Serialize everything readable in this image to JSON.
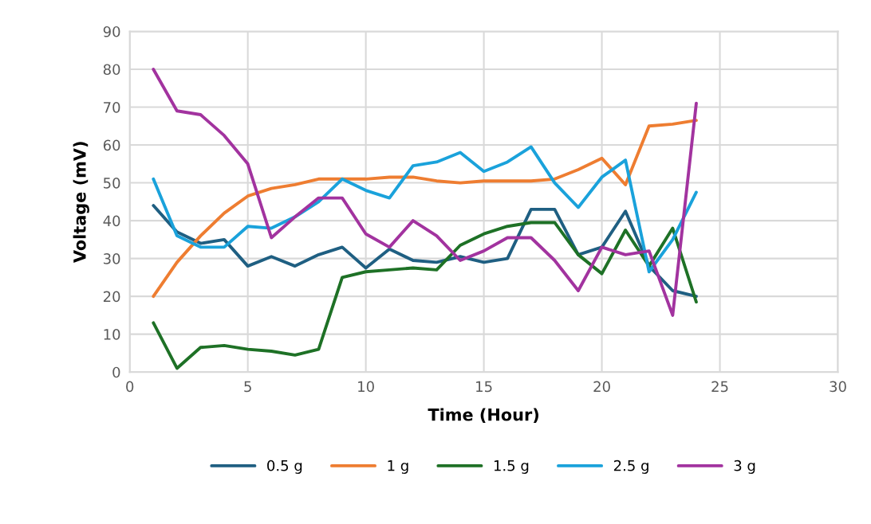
{
  "chart_data": {
    "type": "line",
    "xlabel": "Time (Hour)",
    "ylabel": "Voltage (mV)",
    "x": [
      1,
      2,
      3,
      4,
      5,
      6,
      7,
      8,
      9,
      10,
      11,
      12,
      13,
      14,
      15,
      16,
      17,
      18,
      19,
      20,
      21,
      22,
      23,
      24
    ],
    "xlim": [
      0,
      30
    ],
    "xticks": [
      0,
      5,
      10,
      15,
      20,
      25,
      30
    ],
    "ylim": [
      0,
      90
    ],
    "yticks": [
      0,
      10,
      20,
      30,
      40,
      50,
      60,
      70,
      80,
      90
    ],
    "grid": true,
    "legend": "bottom",
    "marker": "none",
    "line_style": "solid",
    "series": [
      {
        "name": "0.5 g",
        "color": "#1f5f82",
        "values": [
          44,
          37,
          34,
          35,
          28,
          30.5,
          28,
          31,
          33,
          27.5,
          32.5,
          29.5,
          29,
          30.5,
          29,
          30,
          43,
          43,
          31,
          33,
          42.5,
          28,
          21.5,
          20
        ]
      },
      {
        "name": "1 g",
        "color": "#ee7d31",
        "values": [
          20,
          29,
          36,
          42,
          46.5,
          48.5,
          49.5,
          51,
          51,
          51,
          51.5,
          51.5,
          50.5,
          50,
          50.5,
          50.5,
          50.5,
          51,
          53.5,
          56.5,
          49.5,
          65,
          65.5,
          66.5
        ]
      },
      {
        "name": "1.5 g",
        "color": "#1e7126",
        "values": [
          13,
          1,
          6.5,
          7,
          6,
          5.5,
          4.5,
          6,
          25,
          26.5,
          27,
          27.5,
          27,
          33.5,
          36.5,
          38.5,
          39.5,
          39.5,
          31,
          26,
          37.5,
          28,
          38,
          18.5
        ]
      },
      {
        "name": "2.5 g",
        "color": "#1aa2db",
        "values": [
          51,
          36,
          33,
          33,
          38.5,
          38,
          41,
          45,
          51,
          48,
          46,
          54.5,
          55.5,
          58,
          53,
          55.5,
          59.5,
          50,
          43.5,
          51.5,
          56,
          26.5,
          35,
          47.5
        ]
      },
      {
        "name": "3 g",
        "color": "#a2339f",
        "values": [
          80,
          69,
          68,
          62.5,
          55,
          35.5,
          41,
          46,
          46,
          36.5,
          33,
          40,
          36,
          29.5,
          32,
          35.5,
          35.5,
          29.5,
          21.5,
          33,
          31,
          32,
          15,
          71
        ]
      }
    ]
  }
}
